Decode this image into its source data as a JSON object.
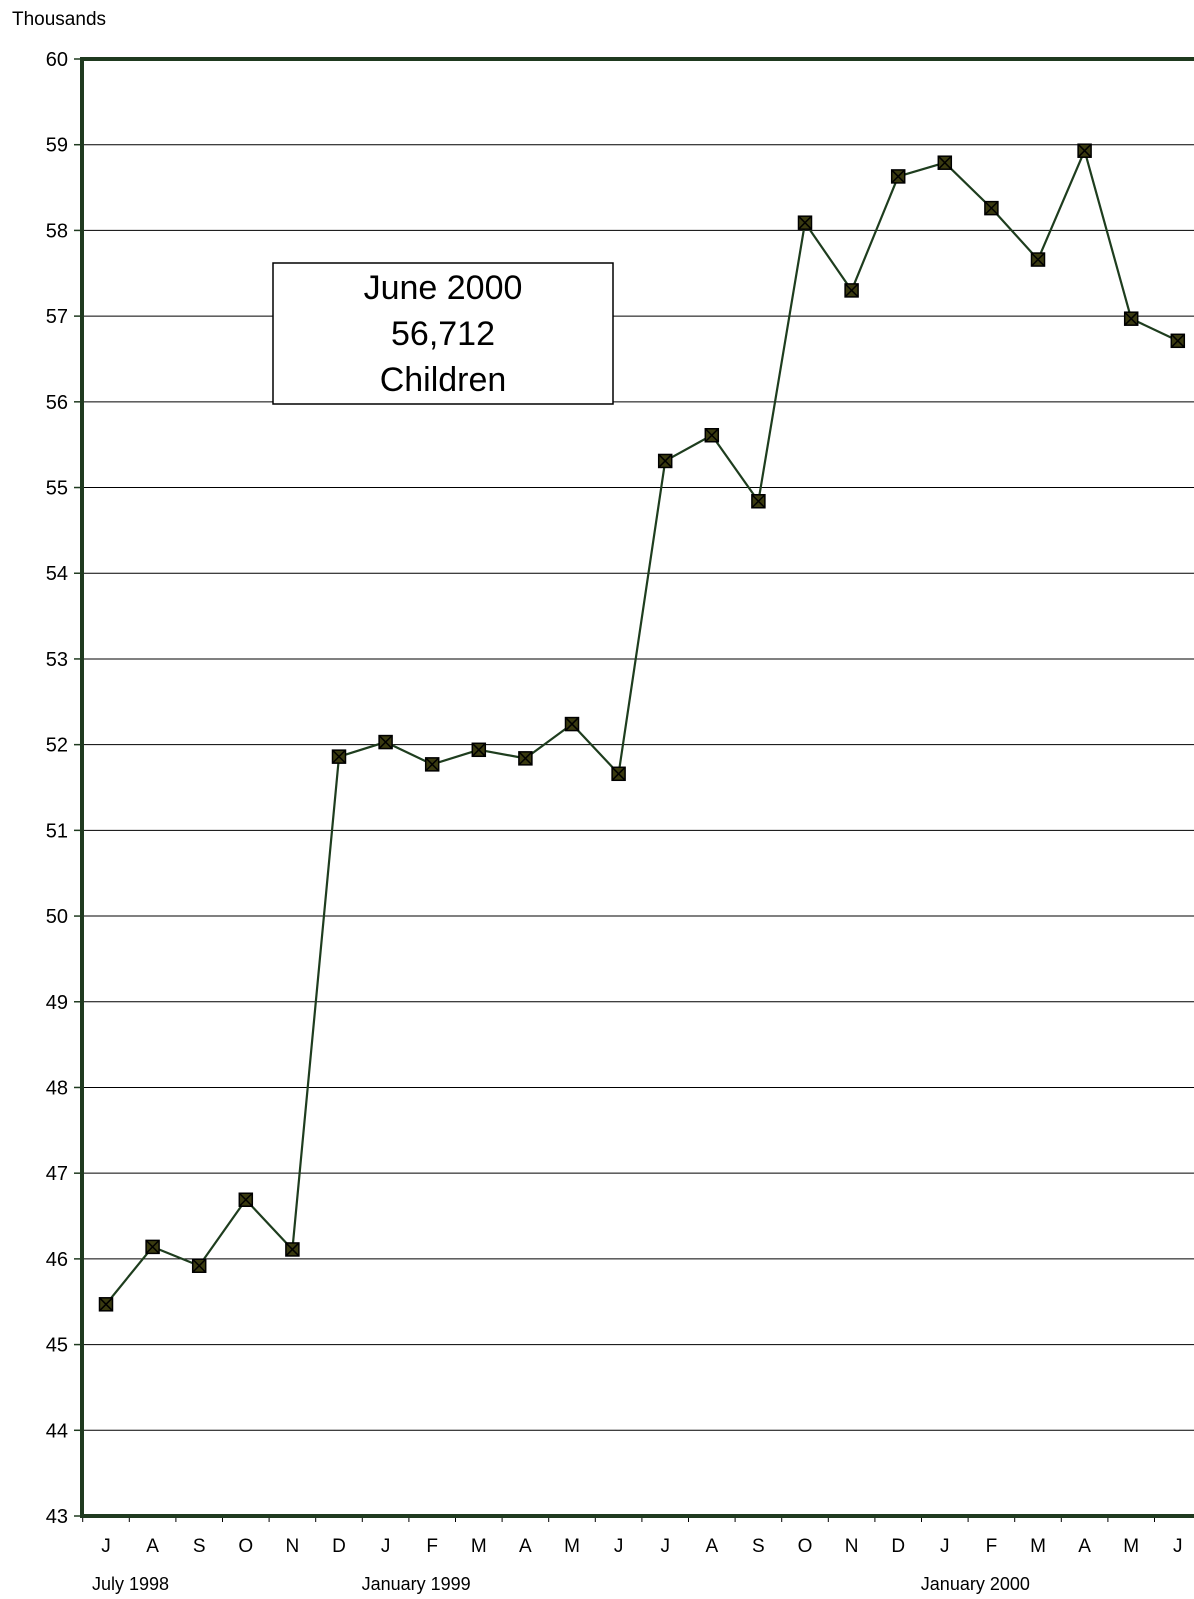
{
  "chart_data": {
    "type": "line",
    "unit_label": "Thousands",
    "ylim": [
      43,
      60
    ],
    "yticks": [
      43,
      44,
      45,
      46,
      47,
      48,
      49,
      50,
      51,
      52,
      53,
      54,
      55,
      56,
      57,
      58,
      59,
      60
    ],
    "grid": true,
    "categories": [
      "J",
      "A",
      "S",
      "O",
      "N",
      "D",
      "J",
      "F",
      "M",
      "A",
      "M",
      "J",
      "J",
      "A",
      "S",
      "O",
      "N",
      "D",
      "J",
      "F",
      "M",
      "A",
      "M",
      "J"
    ],
    "group_labels": [
      {
        "label": "July 1998",
        "index": 0
      },
      {
        "label": "January 1999",
        "index": 6
      },
      {
        "label": "January 2000",
        "index": 18
      }
    ],
    "series": [
      {
        "values": [
          45.47,
          46.14,
          45.92,
          46.69,
          46.11,
          51.86,
          52.03,
          51.77,
          51.94,
          51.84,
          52.24,
          51.66,
          55.31,
          55.61,
          54.84,
          58.09,
          57.3,
          58.63,
          58.79,
          58.26,
          57.66,
          58.93,
          56.97,
          56.712
        ]
      }
    ],
    "annotation": {
      "lines": [
        "June 2000",
        "56,712",
        "Children"
      ]
    },
    "colors": {
      "axis": "#1f3a1f",
      "line": "#1e3d1e",
      "marker_fill": "#3a3a10",
      "marker_edge": "#000000",
      "grid": "#000000"
    }
  }
}
